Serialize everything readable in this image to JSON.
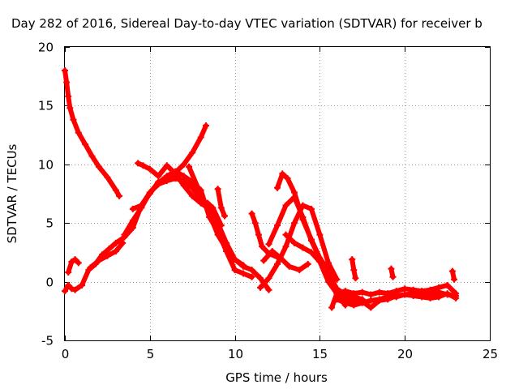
{
  "chart_data": {
    "type": "scatter",
    "title": "Day 282 of 2016, Sidereal Day-to-day VTEC variation (SDTVAR) for receiver b",
    "xlabel": "GPS time / hours",
    "ylabel": "SDTVAR / TECUs",
    "xlim": [
      0,
      25
    ],
    "ylim": [
      -5,
      20
    ],
    "xticks": [
      "0",
      "5",
      "10",
      "15",
      "20",
      "25"
    ],
    "yticks": [
      "-5",
      "0",
      "5",
      "10",
      "15",
      "20"
    ],
    "grid": true,
    "legend": "none",
    "marker": "+",
    "color": "#ff0000",
    "series": [
      {
        "x": [
          0.0,
          0.1,
          0.2,
          0.3,
          0.5,
          0.8,
          1.2,
          1.6,
          2.0,
          2.5,
          3.0,
          3.2
        ],
        "y": [
          18.0,
          17.0,
          15.8,
          14.8,
          13.8,
          12.7,
          11.7,
          10.7,
          9.8,
          8.9,
          7.8,
          7.3
        ]
      },
      {
        "x": [
          0.0,
          0.2,
          0.4,
          0.6,
          1.0,
          1.4,
          1.8,
          2.2,
          2.6,
          3.0,
          3.5,
          4.0,
          4.5,
          5.0,
          5.5,
          6.0,
          6.5,
          7.0,
          7.5,
          8.0,
          8.3
        ],
        "y": [
          -0.8,
          -0.3,
          -0.6,
          -0.7,
          -0.3,
          1.0,
          1.5,
          2.3,
          2.8,
          3.3,
          3.8,
          4.6,
          6.5,
          7.5,
          8.5,
          8.8,
          9.3,
          10.0,
          11.0,
          12.3,
          13.3
        ]
      },
      {
        "x": [
          0.2,
          0.4,
          0.6,
          0.8
        ],
        "y": [
          0.8,
          1.7,
          1.9,
          1.6
        ]
      },
      {
        "x": [
          1.5,
          2.0,
          2.5,
          3.0,
          3.4
        ],
        "y": [
          1.2,
          1.8,
          2.2,
          2.6,
          3.3
        ]
      },
      {
        "x": [
          3.5,
          4.0,
          4.5,
          5.0,
          5.5,
          6.0,
          6.5,
          7.0,
          7.5,
          8.0,
          8.4
        ],
        "y": [
          4.0,
          5.2,
          6.3,
          7.6,
          8.3,
          8.6,
          8.8,
          8.6,
          8.0,
          7.0,
          6.5
        ]
      },
      {
        "x": [
          4.3,
          4.6,
          5.0,
          5.5,
          6.0,
          6.5,
          7.0,
          7.5,
          8.0,
          8.5,
          9.0,
          9.5,
          10.0,
          10.5,
          11.0,
          11.5,
          12.0
        ],
        "y": [
          10.1,
          9.9,
          9.6,
          9.0,
          9.9,
          9.2,
          8.2,
          7.3,
          6.7,
          6.2,
          5.0,
          3.3,
          1.9,
          1.3,
          1.0,
          0.3,
          -0.7
        ]
      },
      {
        "x": [
          4.0,
          4.5,
          5.0,
          5.5,
          6.0,
          6.5,
          7.0,
          7.5,
          8.0,
          8.5,
          9.0,
          9.5,
          10.0,
          10.5,
          11.0
        ],
        "y": [
          6.2,
          6.5,
          7.6,
          8.4,
          9.0,
          9.4,
          9.0,
          8.5,
          7.8,
          5.5,
          4.3,
          2.6,
          1.0,
          0.7,
          0.4
        ]
      },
      {
        "x": [
          7.3,
          8.0,
          8.5,
          9.0,
          9.5,
          10.0,
          10.5
        ],
        "y": [
          9.8,
          7.4,
          5.8,
          4.0,
          2.8,
          1.9,
          1.4
        ]
      },
      {
        "x": [
          7.8,
          8.0,
          8.4,
          8.7,
          9.2
        ],
        "y": [
          7.2,
          6.8,
          6.7,
          6.3,
          4.8
        ]
      },
      {
        "x": [
          9.0,
          9.2,
          9.4
        ],
        "y": [
          7.9,
          6.3,
          5.6
        ]
      },
      {
        "x": [
          11.0,
          11.2,
          11.4,
          11.6,
          12.0,
          12.5
        ],
        "y": [
          5.8,
          5.0,
          4.0,
          3.0,
          2.4,
          2.1
        ]
      },
      {
        "x": [
          11.5,
          12.0,
          12.5,
          13.0,
          13.5,
          14.0,
          14.5,
          15.0,
          15.5,
          16.0
        ],
        "y": [
          -0.5,
          0.3,
          1.5,
          3.0,
          5.0,
          6.5,
          6.2,
          4.0,
          1.6,
          0.2
        ]
      },
      {
        "x": [
          11.7,
          12.2,
          12.7,
          13.2,
          13.8,
          14.3
        ],
        "y": [
          1.8,
          2.6,
          2.0,
          1.3,
          1.0,
          1.5
        ]
      },
      {
        "x": [
          12.5,
          12.8,
          13.1,
          13.5,
          14.0,
          14.5,
          15.0,
          15.5,
          16.0,
          16.5,
          17.0,
          17.5
        ],
        "y": [
          8.0,
          9.2,
          8.8,
          7.6,
          5.3,
          3.6,
          2.0,
          0.7,
          -0.6,
          -1.1,
          -1.3,
          -1.5
        ]
      },
      {
        "x": [
          12.0,
          12.5,
          13.0,
          13.5,
          14.0,
          14.5,
          15.0,
          15.5
        ],
        "y": [
          3.2,
          4.8,
          6.5,
          7.2,
          5.5,
          3.5,
          2.0,
          1.0
        ]
      },
      {
        "x": [
          13.0,
          13.5,
          14.0,
          14.5,
          15.0,
          15.5,
          16.0,
          16.5
        ],
        "y": [
          4.0,
          3.3,
          2.9,
          2.5,
          1.7,
          0.0,
          -1.0,
          -2.0
        ]
      },
      {
        "x": [
          15.7,
          16.0,
          16.5,
          17.0,
          17.5,
          18.0,
          18.5,
          19.0,
          19.5,
          20.0,
          20.5,
          21.0,
          21.5,
          22.0,
          22.5,
          23.0
        ],
        "y": [
          -2.2,
          -1.0,
          -0.8,
          -1.0,
          -0.9,
          -1.1,
          -0.9,
          -1.0,
          -0.8,
          -0.6,
          -0.7,
          -0.8,
          -0.7,
          -0.5,
          -0.3,
          -1.0
        ]
      },
      {
        "x": [
          16.0,
          16.5,
          17.0,
          17.5,
          18.0,
          18.5,
          19.0,
          19.5,
          20.0,
          20.5,
          21.0,
          21.5,
          22.0,
          22.5,
          23.0
        ],
        "y": [
          -1.5,
          -1.8,
          -2.0,
          -1.8,
          -1.6,
          -1.5,
          -1.3,
          -1.3,
          -1.1,
          -1.2,
          -1.3,
          -1.4,
          -1.3,
          -1.0,
          -1.4
        ]
      },
      {
        "x": [
          16.0,
          16.5,
          17.0,
          17.5,
          18.0,
          18.5,
          19.0,
          19.5,
          20.0,
          20.5,
          21.0,
          21.5,
          22.0,
          22.5,
          23.0
        ],
        "y": [
          -1.2,
          -1.4,
          -1.6,
          -1.7,
          -2.2,
          -1.6,
          -1.5,
          -1.2,
          -1.1,
          -1.0,
          -1.1,
          -1.0,
          -0.9,
          -1.1,
          -1.2
        ]
      },
      {
        "x": [
          16.9,
          17.0,
          17.1
        ],
        "y": [
          1.9,
          1.0,
          0.3
        ]
      },
      {
        "x": [
          19.2,
          19.3
        ],
        "y": [
          1.1,
          0.4
        ]
      },
      {
        "x": [
          22.8,
          22.9
        ],
        "y": [
          0.9,
          0.2
        ]
      }
    ]
  }
}
